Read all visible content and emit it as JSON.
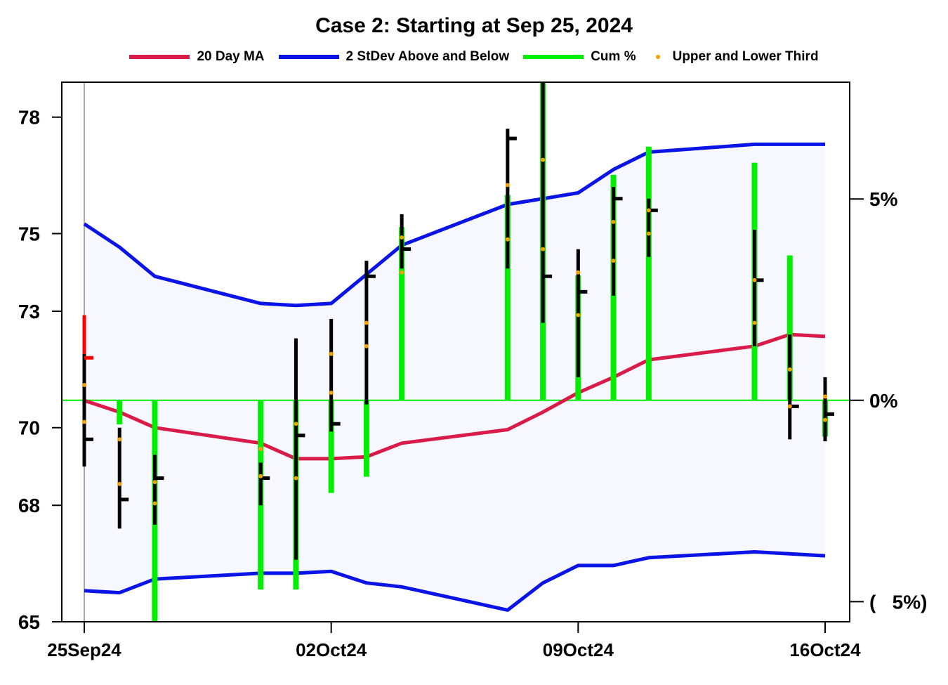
{
  "title": "Case 2:  Starting at Sep 25, 2024",
  "legend": [
    {
      "label": "20 Day MA",
      "color": "#d81b48",
      "kind": "line"
    },
    {
      "label": "2 StDev Above and Below",
      "color": "#0a14e6",
      "kind": "line"
    },
    {
      "label": "Cum %",
      "color": "#00ee00",
      "kind": "line"
    },
    {
      "label": "Upper and Lower Third",
      "color": "#f5a000",
      "kind": "dot"
    }
  ],
  "chart_data": {
    "type": "line",
    "title": "Case 2:  Starting at Sep 25, 2024",
    "x_tick_labels": [
      "25Sep24",
      "02Oct24",
      "09Oct24",
      "16Oct24"
    ],
    "x_tick_dates": [
      "2024-09-25",
      "2024-10-02",
      "2024-10-09",
      "2024-10-16"
    ],
    "y_left_ticks": [
      65,
      68,
      70,
      73,
      75,
      78
    ],
    "y_left_lim": [
      65,
      78.9
    ],
    "y_right_ticks": [
      {
        "label": "5%",
        "value": 5
      },
      {
        "label": "0%",
        "value": 0
      },
      {
        "label": "(   5%)",
        "value": -5
      }
    ],
    "y_right_lim": [
      -5.5,
      7.9
    ],
    "zero_line_color": "#00ee00",
    "band_fill": "#f7f7ff",
    "grid": false,
    "legend_position": "top",
    "dates": [
      "2024-09-25",
      "2024-09-26",
      "2024-09-27",
      "2024-09-30",
      "2024-10-01",
      "2024-10-02",
      "2024-10-03",
      "2024-10-04",
      "2024-10-07",
      "2024-10-08",
      "2024-10-09",
      "2024-10-10",
      "2024-10-11",
      "2024-10-14",
      "2024-10-15",
      "2024-10-16"
    ],
    "ma20": [
      70.7,
      70.4,
      70.0,
      69.6,
      69.2,
      69.2,
      69.25,
      69.6,
      69.95,
      70.4,
      70.9,
      71.3,
      71.75,
      72.1,
      72.4,
      72.35
    ],
    "upper_band": [
      75.25,
      74.65,
      73.9,
      73.2,
      73.15,
      73.2,
      73.95,
      74.7,
      75.75,
      75.9,
      76.05,
      76.65,
      77.1,
      77.3,
      77.3,
      77.3
    ],
    "lower_band": [
      65.8,
      65.75,
      66.1,
      66.25,
      66.25,
      66.3,
      66.0,
      65.9,
      65.3,
      66.0,
      66.45,
      66.45,
      66.65,
      66.8,
      66.75,
      66.7
    ],
    "ohlc": [
      {
        "date": "2024-09-25",
        "high": 71.9,
        "low": 69.0,
        "close": 69.7,
        "down": false
      },
      {
        "date": "2024-09-26",
        "high": 70.0,
        "low": 67.4,
        "close": 68.15,
        "down": false
      },
      {
        "date": "2024-09-27",
        "high": 69.3,
        "low": 67.5,
        "close": 68.7,
        "down": false
      },
      {
        "date": "2024-09-30",
        "high": 69.1,
        "low": 68.0,
        "close": 68.7,
        "down": false
      },
      {
        "date": "2024-10-01",
        "high": 72.3,
        "low": 66.6,
        "close": 69.8,
        "down": false
      },
      {
        "date": "2024-10-02",
        "high": 72.8,
        "low": 69.9,
        "close": 70.1,
        "down": false
      },
      {
        "date": "2024-10-03",
        "high": 74.3,
        "low": 70.6,
        "close": 73.9,
        "down": false
      },
      {
        "date": "2024-10-04",
        "high": 75.5,
        "low": 74.1,
        "close": 74.6,
        "down": false
      },
      {
        "date": "2024-10-07",
        "high": 77.7,
        "low": 74.1,
        "close": 77.45,
        "down": false
      },
      {
        "date": "2024-10-08",
        "high": 78.9,
        "low": 72.7,
        "close": 73.9,
        "down": false
      },
      {
        "date": "2024-10-09",
        "high": 74.6,
        "low": 71.3,
        "close": 73.5,
        "down": false
      },
      {
        "date": "2024-10-10",
        "high": 76.2,
        "low": 73.4,
        "close": 75.9,
        "down": false
      },
      {
        "date": "2024-10-11",
        "high": 75.9,
        "low": 74.4,
        "close": 75.6,
        "down": false
      },
      {
        "date": "2024-10-14",
        "high": 75.1,
        "low": 72.1,
        "close": 73.8,
        "down": false
      },
      {
        "date": "2024-10-15",
        "high": 72.4,
        "low": 69.7,
        "close": 70.55,
        "down": false
      },
      {
        "date": "2024-10-16",
        "high": 71.3,
        "low": 69.65,
        "close": 70.35,
        "down": false
      }
    ],
    "down_segment": {
      "date": "2024-09-25",
      "high": 72.9,
      "low": 71.9,
      "close": 71.8,
      "color": "#ff0000"
    },
    "third_dots": [
      [
        71.1,
        70.15
      ],
      [
        69.7,
        68.55
      ],
      [
        68.6,
        68.05
      ],
      [
        69.45,
        68.75
      ],
      [
        70.1,
        68.7
      ],
      [
        71.9,
        70.9
      ],
      [
        72.7,
        72.1
      ],
      [
        74.9,
        74.0
      ],
      [
        76.25,
        74.85
      ],
      [
        76.9,
        74.6
      ],
      [
        74.0,
        72.9
      ],
      [
        75.3,
        74.3
      ],
      [
        75.6,
        75.0
      ],
      [
        73.8,
        72.7
      ],
      [
        71.5,
        70.55
      ],
      [
        70.8,
        70.2
      ]
    ],
    "cum_pct": [
      {
        "date": "2024-09-26",
        "from": 0,
        "to": -0.6
      },
      {
        "date": "2024-09-27",
        "from": 0,
        "to": -5.5
      },
      {
        "date": "2024-09-30",
        "from": 0,
        "to": -4.7
      },
      {
        "date": "2024-10-01",
        "from": 0,
        "to": -4.7
      },
      {
        "date": "2024-10-02",
        "from": 0,
        "to": -2.3
      },
      {
        "date": "2024-10-03",
        "from": 0,
        "to": -1.9
      },
      {
        "date": "2024-10-04",
        "from": 0,
        "to": 4.3
      },
      {
        "date": "2024-10-07",
        "from": 0,
        "to": 5.1
      },
      {
        "date": "2024-10-08",
        "from": 0,
        "to": 7.9
      },
      {
        "date": "2024-10-09",
        "from": 0,
        "to": 3.1
      },
      {
        "date": "2024-10-10",
        "from": 0,
        "to": 5.6
      },
      {
        "date": "2024-10-11",
        "from": 0,
        "to": 6.3
      },
      {
        "date": "2024-10-14",
        "from": 0,
        "to": 5.9
      },
      {
        "date": "2024-10-15",
        "from": 0,
        "to": 3.6
      },
      {
        "date": "2024-10-16",
        "from": 0,
        "to": -0.9
      }
    ]
  }
}
